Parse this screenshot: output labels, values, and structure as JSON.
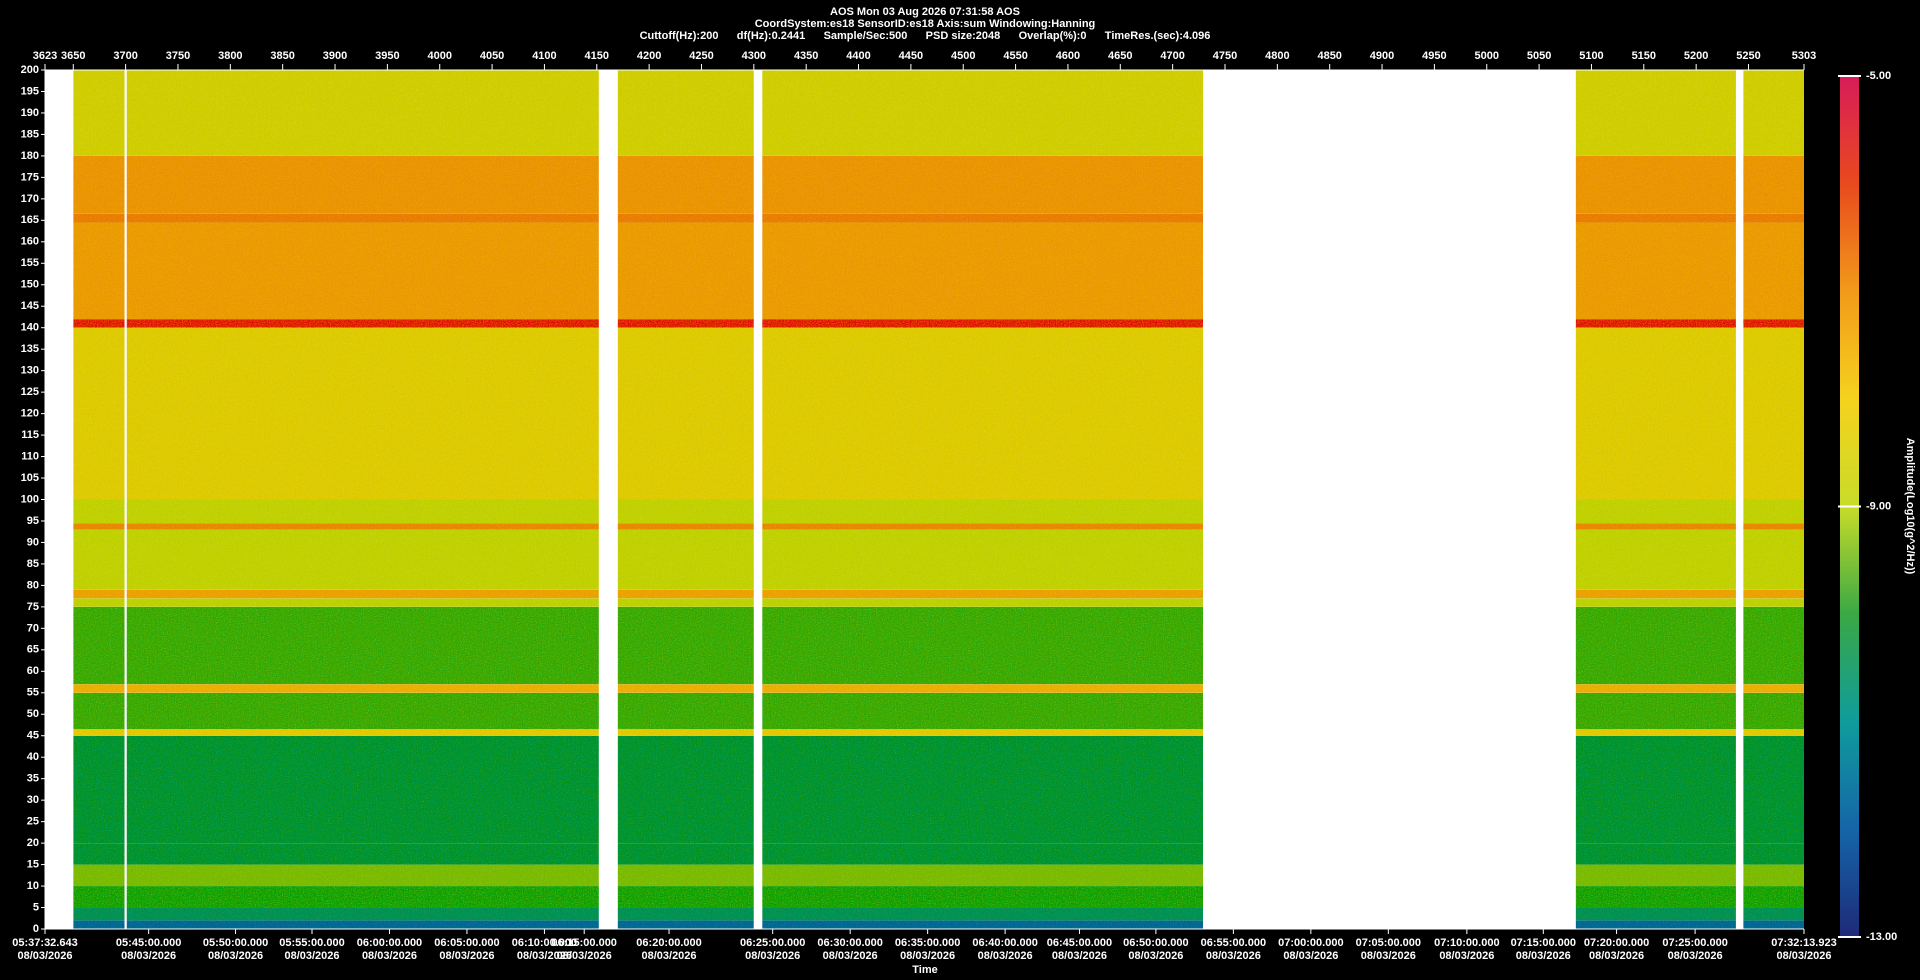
{
  "chart_data": {
    "type": "spectrogram",
    "title": "AOS  Mon 03 Aug 2026 07:31:58  AOS",
    "subtitle": "CoordSystem:es18   SensorID:es18   Axis:sum   Windowing:Hanning",
    "settings_line": "Cuttoff(Hz):200      df(Hz):0.2441      Sample/Sec:500      PSD size:2048      Overlap(%):0      TimeRes.(sec):4.096",
    "xlabel": "Time",
    "colorbar_label": "Amplitude(Log10(g^2/Hz))",
    "xlim": [
      3623,
      5303
    ],
    "xticks": [
      3623,
      3650,
      3700,
      3750,
      3800,
      3850,
      3900,
      3950,
      4000,
      4050,
      4100,
      4150,
      4200,
      4250,
      4300,
      4350,
      4400,
      4450,
      4500,
      4550,
      4600,
      4650,
      4700,
      4750,
      4800,
      4850,
      4900,
      4950,
      5000,
      5050,
      5100,
      5150,
      5200,
      5250,
      5303
    ],
    "time_ticks": [
      {
        "value": 3623,
        "label": "05:37:32.643"
      },
      {
        "value": 3722,
        "label": "05:45:00.000"
      },
      {
        "value": 3805,
        "label": "05:50:00.000"
      },
      {
        "value": 3878,
        "label": "05:55:00.000"
      },
      {
        "value": 3952,
        "label": "06:00:00.000"
      },
      {
        "value": 4026,
        "label": "06:05:00.000"
      },
      {
        "value": 4100,
        "label": "06:10:00.000"
      },
      {
        "value": 4138,
        "label": "06:15:00.000"
      },
      {
        "value": 4219,
        "label": "06:20:00.000"
      },
      {
        "value": 4318,
        "label": "06:25:00.000"
      },
      {
        "value": 4392,
        "label": "06:30:00.000"
      },
      {
        "value": 4466,
        "label": "06:35:00.000"
      },
      {
        "value": 4540,
        "label": "06:40:00.000"
      },
      {
        "value": 4611,
        "label": "06:45:00.000"
      },
      {
        "value": 4684,
        "label": "06:50:00.000"
      },
      {
        "value": 4758,
        "label": "06:55:00.000"
      },
      {
        "value": 4832,
        "label": "07:00:00.000"
      },
      {
        "value": 4906,
        "label": "07:05:00.000"
      },
      {
        "value": 4981,
        "label": "07:10:00.000"
      },
      {
        "value": 5054,
        "label": "07:15:00.000"
      },
      {
        "value": 5124,
        "label": "07:20:00.000"
      },
      {
        "value": 5199,
        "label": "07:25:00.000"
      },
      {
        "value": 5303,
        "label": "07:32:13.923"
      }
    ],
    "date": "08/03/2026",
    "ylim": [
      0,
      200
    ],
    "yticks": [
      0,
      5,
      10,
      15,
      20,
      25,
      30,
      35,
      40,
      45,
      50,
      55,
      60,
      65,
      70,
      75,
      80,
      85,
      90,
      95,
      100,
      105,
      110,
      115,
      120,
      125,
      130,
      135,
      140,
      145,
      150,
      155,
      160,
      165,
      170,
      175,
      180,
      185,
      190,
      195,
      200
    ],
    "segments": [
      [
        3650,
        3699
      ],
      [
        3701,
        4152
      ],
      [
        4170,
        4300
      ],
      [
        4308,
        4729
      ],
      [
        5085,
        5238
      ],
      [
        5245,
        5303
      ]
    ],
    "band_edges": [
      0,
      2,
      5,
      10,
      15,
      20,
      45,
      46.5,
      55,
      57,
      75,
      77,
      79,
      93,
      94.5,
      100,
      140,
      142,
      164.5,
      166.5,
      180,
      200
    ],
    "band_values": [
      -11.5,
      -10.5,
      -9.8,
      -9.4,
      -10.3,
      -10.3,
      -8.2,
      -9.7,
      -7.6,
      -9.7,
      -9.0,
      -7.4,
      -8.9,
      -7.0,
      -8.9,
      -8.3,
      -6.2,
      -7.3,
      -6.9,
      -7.2,
      -8.6
    ],
    "clim": [
      -13,
      -5
    ],
    "cticks": [
      {
        "value": -5,
        "label": "-5.00"
      },
      {
        "value": -9,
        "label": "-9.00"
      },
      {
        "value": -13,
        "label": "-13.00"
      }
    ],
    "colormap": [
      "#1e2a78",
      "#1565a8",
      "#0f9c9c",
      "#3aa845",
      "#c8dc28",
      "#f5d21e",
      "#f29a1a",
      "#e84a1e",
      "#d81b5a"
    ]
  }
}
